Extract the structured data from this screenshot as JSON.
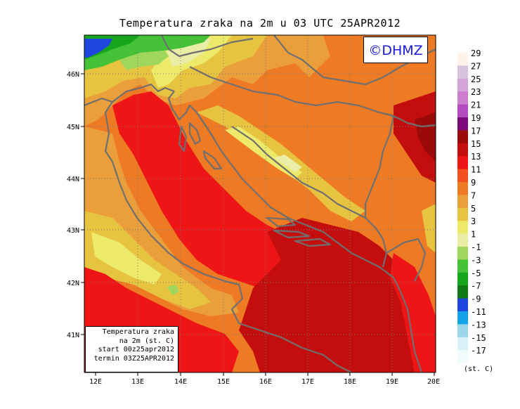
{
  "title": "Temperatura zraka na 2m u 03 UTC 25APR2012",
  "watermark": "©DHMZ",
  "info_box": {
    "line1": "Temperatura zraka",
    "line2": "na 2m (st. C)",
    "line3": "start 00z25apr2012",
    "line4": "termin 03Z25APR2012"
  },
  "axes": {
    "x_ticks": [
      "12E",
      "13E",
      "14E",
      "15E",
      "16E",
      "17E",
      "18E",
      "19E",
      "20E"
    ],
    "y_ticks": [
      "46N",
      "45N",
      "44N",
      "43N",
      "42N",
      "41N"
    ]
  },
  "colorbar": {
    "units": "(st. C)",
    "levels": [
      {
        "label": "29",
        "color": "#fdf3e8"
      },
      {
        "label": "27",
        "color": "#d8c3dd"
      },
      {
        "label": "25",
        "color": "#d6a6d8"
      },
      {
        "label": "23",
        "color": "#cc7fd0"
      },
      {
        "label": "21",
        "color": "#b34cc0"
      },
      {
        "label": "19",
        "color": "#7d0a7a"
      },
      {
        "label": "17",
        "color": "#9b0a0a"
      },
      {
        "label": "15",
        "color": "#c40e0e"
      },
      {
        "label": "13",
        "color": "#ed1515"
      },
      {
        "label": "11",
        "color": "#f2501c"
      },
      {
        "label": "9",
        "color": "#ef7a24"
      },
      {
        "label": "7",
        "color": "#eb9f3a"
      },
      {
        "label": "5",
        "color": "#e7c440"
      },
      {
        "label": "3",
        "color": "#ede96a"
      },
      {
        "label": "1",
        "color": "#e9eda6"
      },
      {
        "label": "-1",
        "color": "#9fd65c"
      },
      {
        "label": "-3",
        "color": "#45c238"
      },
      {
        "label": "-5",
        "color": "#17a51d"
      },
      {
        "label": "-7",
        "color": "#127a14"
      },
      {
        "label": "-9",
        "color": "#1f47dd"
      },
      {
        "label": "-11",
        "color": "#15a3e8"
      },
      {
        "label": "-13",
        "color": "#9bd6ea"
      },
      {
        "label": "-15",
        "color": "#d8f1f6"
      },
      {
        "label": "-17",
        "color": "#f2fbfc"
      }
    ]
  },
  "colors": {
    "coast": "#6f6f6f",
    "grid": "#7a7a7a",
    "frame": "#000000"
  }
}
